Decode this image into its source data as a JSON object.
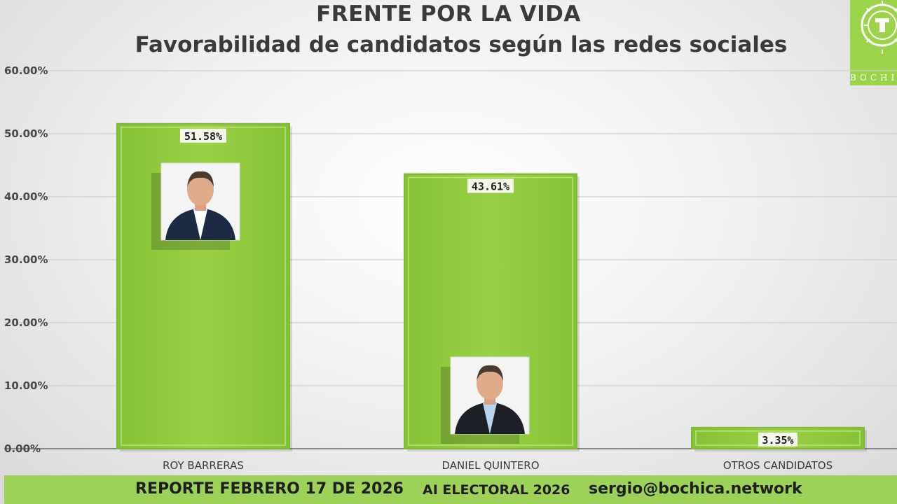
{
  "chart_data": {
    "type": "bar",
    "title": "FRENTE POR LA VIDA",
    "subtitle": "Favorabilidad de candidatos según las redes sociales",
    "categories": [
      "ROY BARRERAS",
      "DANIEL QUINTERO",
      "OTROS CANDIDATOS"
    ],
    "values": [
      51.58,
      43.61,
      3.35
    ],
    "data_labels": [
      "51.58%",
      "43.61%",
      "3.35%"
    ],
    "yticks": [
      "0.00%",
      "10.00%",
      "20.00%",
      "30.00%",
      "40.00%",
      "50.00%",
      "60.00%"
    ],
    "ylim": [
      0,
      60
    ],
    "grid": true,
    "bar_color": "#9ad045"
  },
  "logo_text": "BOCHICA",
  "footer": {
    "report": "REPORTE FEBRERO 17 DE 2026",
    "ai": "AI ELECTORAL 2026",
    "email": "sergio@bochica.network"
  },
  "colors": {
    "accent_green": "#9ed157",
    "text_dark": "#3a3a3a"
  }
}
